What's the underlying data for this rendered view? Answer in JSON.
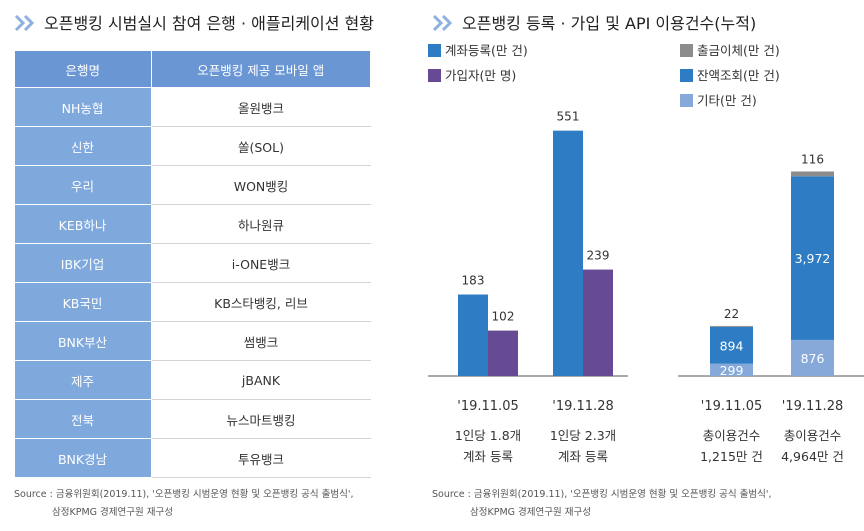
{
  "left_title": "오픈뱅킹 시범실시 참여 은행 · 애플리케이션 현황",
  "right_title": "오픈뱅킹 등록 · 가입 및 API 이용건수(누적)",
  "table": {
    "headers": [
      "은행명",
      "오픈뱅킹 제공 모바일 앱"
    ],
    "rows": [
      [
        "NH농협",
        "올원뱅크"
      ],
      [
        "신한",
        "쏠(SOL)"
      ],
      [
        "우리",
        "WON뱅킹"
      ],
      [
        "KEB하나",
        "하나원큐"
      ],
      [
        "IBK기업",
        "i-ONE뱅크"
      ],
      [
        "KB국민",
        "KB스타뱅킹, 리브"
      ],
      [
        "BNK부산",
        "썸뱅크"
      ],
      [
        "제주",
        "jBANK"
      ],
      [
        "전북",
        "뉴스마트뱅킹"
      ],
      [
        "BNK경남",
        "투유뱅크"
      ]
    ]
  },
  "source_left": {
    "line1": "Source : 금융위원회(2019.11), '오픈뱅킹 시범운영 현황 및 오픈뱅킹 공식 출범식',",
    "line2": "삼정KPMG 경제연구원 재구성"
  },
  "source_right": {
    "line1": "Source : 금융위원회(2019.11), '오픈뱅킹 시범운영 현황 및 오픈뱅킹 공식 출범식',",
    "line2": "삼정KPMG 경제연구원 재구성"
  },
  "colors": {
    "header": "#6a96d4",
    "bank_cell": "#7fa8dc",
    "title_chevron": "#8fb1e0",
    "accounts": "#2d7cc4",
    "users": "#664a94",
    "transfer": "#8c8c8c",
    "balance": "#2d7cc4",
    "other": "#86a9da"
  },
  "chart_data": [
    {
      "type": "bar",
      "categories": [
        "'19.11.05",
        "'19.11.28"
      ],
      "category_notes": [
        [
          "1인당 1.8개",
          "계좌 등록"
        ],
        [
          "1인당 2.3개",
          "계좌 등록"
        ]
      ],
      "series": [
        {
          "name": "계좌등록(만 건)",
          "values": [
            183,
            551
          ],
          "labels": [
            "183",
            "551"
          ]
        },
        {
          "name": "가입자(만 명)",
          "values": [
            102,
            239
          ],
          "labels": [
            "102",
            "239"
          ]
        }
      ],
      "legend_position": "top-left",
      "ylim": [
        0,
        600
      ]
    },
    {
      "type": "bar",
      "stacked": true,
      "categories": [
        "'19.11.05",
        "'19.11.28"
      ],
      "category_notes": [
        [
          "총이용건수",
          "1,215만 건"
        ],
        [
          "총이용건수",
          "4,964만 건"
        ]
      ],
      "series": [
        {
          "name": "기타(만 건)",
          "values": [
            299,
            876
          ],
          "labels": [
            "299",
            "876"
          ]
        },
        {
          "name": "잔액조회(만 건)",
          "values": [
            894,
            3972
          ],
          "labels": [
            "894",
            "3,972"
          ]
        },
        {
          "name": "출금이체(만 건)",
          "values": [
            22,
            116
          ],
          "labels": [
            "22",
            "116"
          ]
        }
      ],
      "totals": [
        1215,
        4964
      ],
      "legend_position": "top-right",
      "ylim": [
        0,
        5200
      ]
    }
  ]
}
